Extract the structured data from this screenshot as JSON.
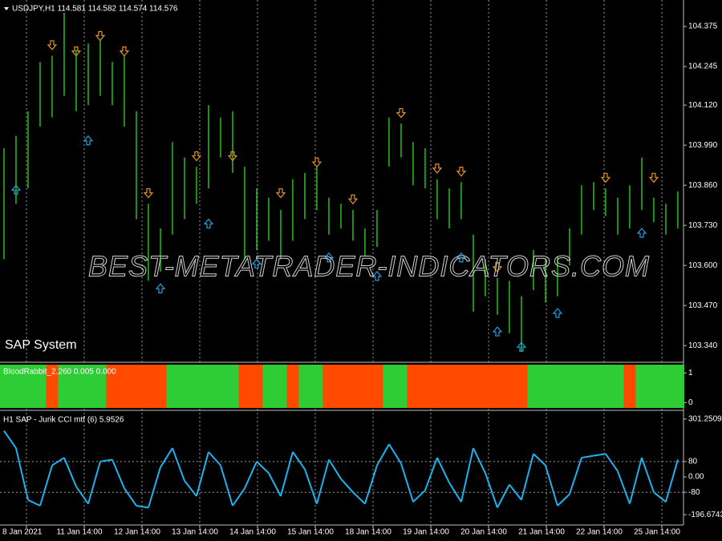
{
  "chart_data": [
    {
      "type": "ohlc",
      "title": "USDJPY,H1  114.581 114.582 114.574 114.576",
      "subtitle": "SAP System",
      "watermark": "BEST-METATRADER-INDICATORS.COM",
      "color": "#22c21a",
      "lows": [
        103.62,
        103.8,
        103.85,
        104.05,
        104.08,
        104.15,
        104.1,
        104.12,
        104.15,
        104.12,
        104.05,
        103.75,
        103.55,
        103.58,
        103.7,
        103.75,
        103.8,
        103.85,
        103.95,
        103.9,
        103.62,
        103.65,
        103.68,
        103.62,
        103.68,
        103.75,
        103.78,
        103.7,
        103.72,
        103.68,
        103.63,
        103.66,
        103.92,
        103.95,
        103.86,
        103.85,
        103.75,
        103.72,
        103.75,
        103.45,
        103.5,
        103.44,
        103.38,
        103.32,
        103.52,
        103.48,
        103.5,
        103.6,
        103.7,
        103.78,
        103.76,
        103.7,
        103.72,
        103.78,
        103.74,
        103.7,
        103.72
      ],
      "highs": [
        103.98,
        104.02,
        104.1,
        104.26,
        104.28,
        104.42,
        104.3,
        104.32,
        104.33,
        104.26,
        104.28,
        104.1,
        103.8,
        103.72,
        104.0,
        103.95,
        103.92,
        104.12,
        104.08,
        104.1,
        103.92,
        103.85,
        103.82,
        103.78,
        103.88,
        103.9,
        103.92,
        103.82,
        103.8,
        103.78,
        103.72,
        103.78,
        104.08,
        104.06,
        104.0,
        103.98,
        103.88,
        103.85,
        103.87,
        103.7,
        103.62,
        103.56,
        103.55,
        103.5,
        103.65,
        103.62,
        103.63,
        103.72,
        103.86,
        103.87,
        103.85,
        103.82,
        103.86,
        103.95,
        103.82,
        103.8,
        103.84
      ],
      "up_signals": {
        "color": "#1e9fe6",
        "x": [
          1,
          7,
          13,
          17,
          21,
          27,
          31,
          38,
          41,
          43,
          46,
          53
        ],
        "y": [
          103.86,
          104.02,
          103.54,
          103.75,
          103.62,
          103.64,
          103.58,
          103.64,
          103.4,
          103.35,
          103.46,
          103.72
        ]
      },
      "down_signals": {
        "color": "#e6922a",
        "x": [
          4,
          6,
          8,
          10,
          12,
          16,
          19,
          23,
          26,
          29,
          33,
          36,
          38,
          41,
          50,
          54
        ],
        "y": [
          104.3,
          104.28,
          104.33,
          104.28,
          103.82,
          103.94,
          103.94,
          103.82,
          103.92,
          103.8,
          104.08,
          103.9,
          103.89,
          103.58,
          103.87,
          103.87
        ]
      },
      "xlim": [
        -0.33,
        56.47
      ],
      "ylim": [
        103.291,
        104.461
      ],
      "yticks": [
        {
          "value": 104.375,
          "label": "104.375"
        },
        {
          "value": 104.245,
          "label": "104.245"
        },
        {
          "value": 104.12,
          "label": "104.120"
        },
        {
          "value": 103.99,
          "label": "103.990"
        },
        {
          "value": 103.86,
          "label": "103.860"
        },
        {
          "value": 103.73,
          "label": "103.730"
        },
        {
          "value": 103.6,
          "label": "103.600"
        },
        {
          "value": 103.47,
          "label": "103.470"
        },
        {
          "value": 103.34,
          "label": "103.340"
        }
      ],
      "xticks": [
        {
          "value": 1.87,
          "label": "8 Jan 2021"
        },
        {
          "value": 6.67,
          "label": "11 Jan 14:00"
        },
        {
          "value": 11.47,
          "label": "12 Jan 14:00"
        },
        {
          "value": 16.27,
          "label": "13 Jan 14:00"
        },
        {
          "value": 21.07,
          "label": "14 Jan 14:00"
        },
        {
          "value": 25.87,
          "label": "15 Jan 14:00"
        },
        {
          "value": 30.67,
          "label": "18 Jan 14:00"
        },
        {
          "value": 35.47,
          "label": "19 Jan 14:00"
        },
        {
          "value": 40.27,
          "label": "20 Jan 14:00"
        },
        {
          "value": 45.07,
          "label": "21 Jan 14:00"
        },
        {
          "value": 49.87,
          "label": "22 Jan 14:00"
        },
        {
          "value": 54.67,
          "label": "25 Jan 14:00"
        }
      ]
    },
    {
      "type": "state",
      "title": "BloodRabbit_2.260 0.005 0.000",
      "colors": [
        "#ff4a00",
        "#2ecc35"
      ],
      "values": [
        1,
        1,
        1,
        1,
        0,
        1,
        1,
        1,
        1,
        0,
        0,
        0,
        0,
        0,
        1,
        1,
        1,
        1,
        1,
        1,
        0,
        0,
        1,
        1,
        0,
        1,
        1,
        0,
        0,
        0,
        0,
        0,
        1,
        1,
        0,
        0,
        0,
        0,
        0,
        0,
        0,
        0,
        0,
        0,
        1,
        1,
        1,
        1,
        1,
        1,
        1,
        1,
        0,
        1,
        1,
        1,
        1
      ],
      "ylim": [
        -0.18,
        1.28
      ],
      "yticks": [
        1,
        0
      ]
    },
    {
      "type": "line",
      "title": "H1 SAP - Jurik CCI mtf (6) 5.9526",
      "colors": [
        "#808080",
        "#19b4f0"
      ],
      "values": [
        240,
        150,
        -120,
        -150,
        60,
        100,
        -50,
        -140,
        80,
        90,
        -60,
        -150,
        -160,
        50,
        150,
        -20,
        -100,
        130,
        60,
        -150,
        -60,
        80,
        20,
        -100,
        130,
        40,
        -140,
        90,
        -10,
        -80,
        -140,
        60,
        170,
        70,
        -130,
        -70,
        100,
        -30,
        -130,
        150,
        20,
        -160,
        -40,
        -120,
        120,
        60,
        -150,
        -90,
        100,
        110,
        120,
        30,
        -140,
        100,
        -80,
        -130,
        90
      ],
      "levels": [
        80,
        -80
      ],
      "ylim": [
        -246,
        338
      ],
      "yticks": [
        {
          "value": 301.2509,
          "label": "301.2509"
        },
        80,
        {
          "value": 0,
          "label": "0.00"
        },
        -80,
        {
          "value": -196.6743,
          "label": "-196.6743"
        }
      ]
    }
  ]
}
